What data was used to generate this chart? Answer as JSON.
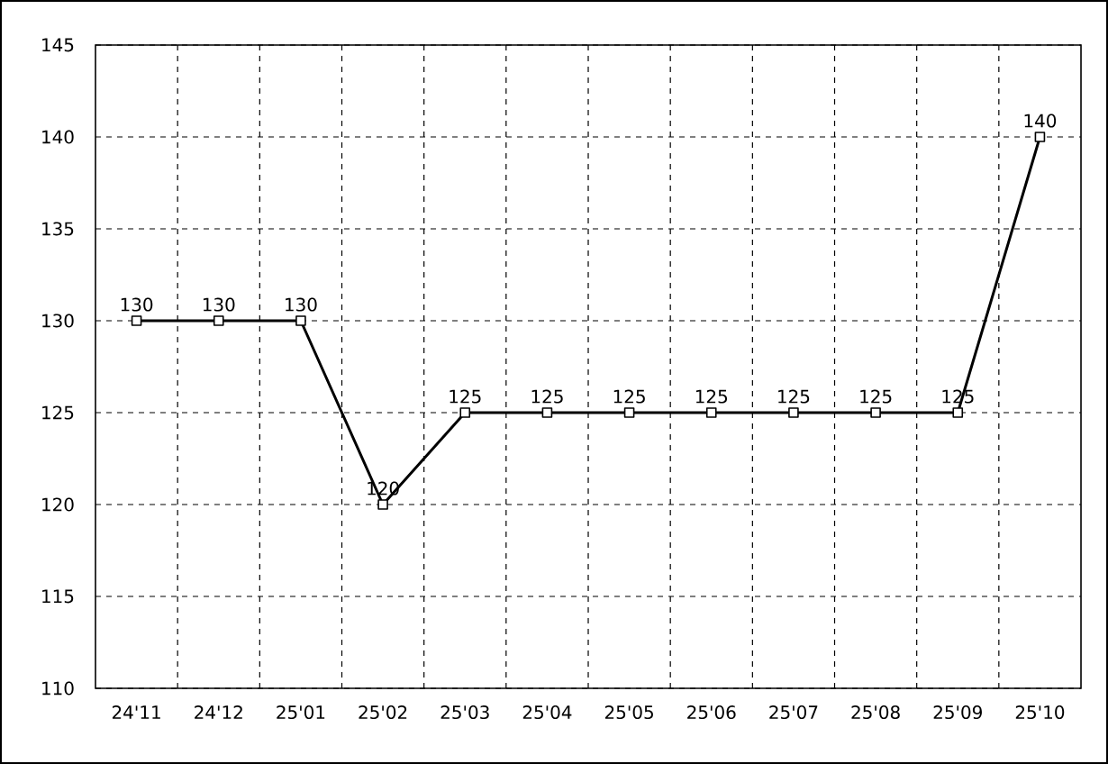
{
  "chart_data": {
    "type": "line",
    "categories": [
      "24'11",
      "24'12",
      "25'01",
      "25'02",
      "25'03",
      "25'04",
      "25'05",
      "25'06",
      "25'07",
      "25'08",
      "25'09",
      "25'10"
    ],
    "values": [
      130,
      130,
      130,
      120,
      125,
      125,
      125,
      125,
      125,
      125,
      125,
      140
    ],
    "color": "#000000",
    "ylim": [
      110,
      145
    ],
    "yticks": [
      110,
      115,
      120,
      125,
      130,
      135,
      140,
      145
    ],
    "grid": true,
    "marker": "square",
    "line_style": "solid",
    "data_labels": true
  }
}
